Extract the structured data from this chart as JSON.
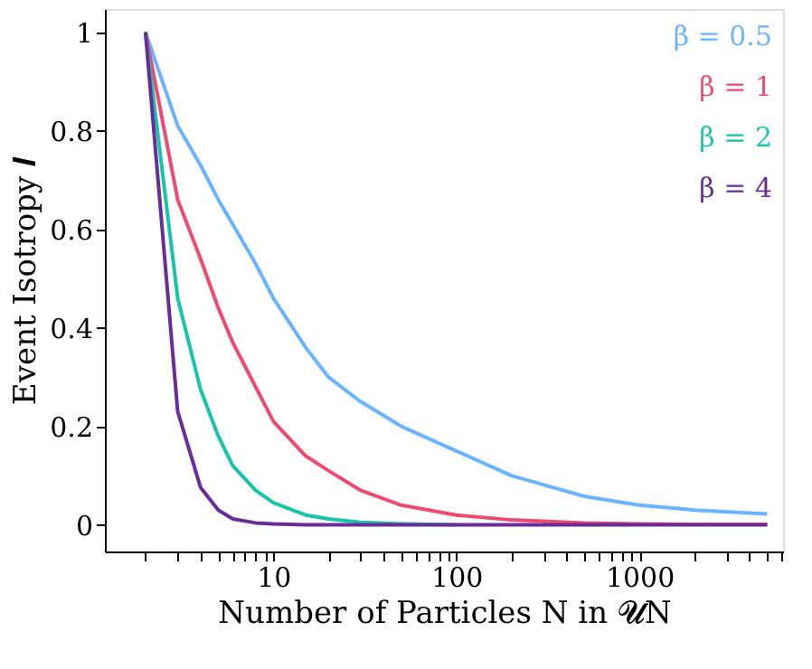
{
  "chart_data": {
    "type": "line",
    "xlabel": "Number of Particles N in 𝓤N",
    "ylabel": "Event Isotropy 𝑰",
    "x": [
      2,
      3,
      4,
      5,
      6,
      8,
      10,
      15,
      20,
      30,
      50,
      100,
      200,
      500,
      1000,
      2000,
      5000
    ],
    "series": [
      {
        "name": "β = 0.5",
        "color": "#6ab4ff",
        "values": [
          1,
          0.81,
          0.73,
          0.66,
          0.61,
          0.53,
          0.46,
          0.36,
          0.3,
          0.25,
          0.2,
          0.15,
          0.1,
          0.058,
          0.04,
          0.03,
          0.022
        ]
      },
      {
        "name": "β = 1",
        "color": "#ee4b6e",
        "values": [
          1,
          0.66,
          0.54,
          0.44,
          0.37,
          0.28,
          0.21,
          0.14,
          0.11,
          0.07,
          0.04,
          0.02,
          0.01,
          0.004,
          0.002,
          0.001,
          0.001
        ]
      },
      {
        "name": "β = 2",
        "color": "#16c5ab",
        "values": [
          1,
          0.46,
          0.275,
          0.18,
          0.12,
          0.07,
          0.045,
          0.02,
          0.012,
          0.005,
          0.002,
          0,
          null,
          null,
          null,
          null,
          null
        ]
      },
      {
        "name": "β = 4",
        "color": "#6a2c9a",
        "values": [
          1,
          0.23,
          0.076,
          0.03,
          0.012,
          0.004,
          0.002,
          0,
          0,
          0,
          0,
          0,
          0,
          0,
          0,
          0,
          0
        ]
      }
    ],
    "log": "x",
    "xlim": [
      1.2,
      6100
    ],
    "ylim": [
      -0.054,
      1.047
    ],
    "xticks": [
      {
        "value": 2,
        "label": null
      },
      {
        "value": 3,
        "label": null
      },
      {
        "value": 4,
        "label": null
      },
      {
        "value": 5,
        "label": null
      },
      {
        "value": 6,
        "label": null
      },
      {
        "value": 7,
        "label": null
      },
      {
        "value": 8,
        "label": null
      },
      {
        "value": 9,
        "label": null
      },
      10,
      {
        "value": 20,
        "label": null
      },
      {
        "value": 30,
        "label": null
      },
      {
        "value": 40,
        "label": null
      },
      {
        "value": 50,
        "label": null
      },
      {
        "value": 60,
        "label": null
      },
      {
        "value": 70,
        "label": null
      },
      {
        "value": 80,
        "label": null
      },
      {
        "value": 90,
        "label": null
      },
      100,
      {
        "value": 200,
        "label": null
      },
      {
        "value": 300,
        "label": null
      },
      {
        "value": 400,
        "label": null
      },
      {
        "value": 500,
        "label": null
      },
      {
        "value": 600,
        "label": null
      },
      {
        "value": 700,
        "label": null
      },
      {
        "value": 800,
        "label": null
      },
      {
        "value": 900,
        "label": null
      },
      1000,
      {
        "value": 2000,
        "label": null
      },
      {
        "value": 3000,
        "label": null
      },
      {
        "value": 4000,
        "label": null
      },
      {
        "value": 5000,
        "label": null
      },
      {
        "value": 6000,
        "label": null
      }
    ],
    "yticks": [
      0,
      0.2,
      0.4,
      0.6,
      0.8,
      1
    ],
    "grid": false,
    "legend": "top right",
    "line_style": "solid",
    "marker": "none"
  }
}
